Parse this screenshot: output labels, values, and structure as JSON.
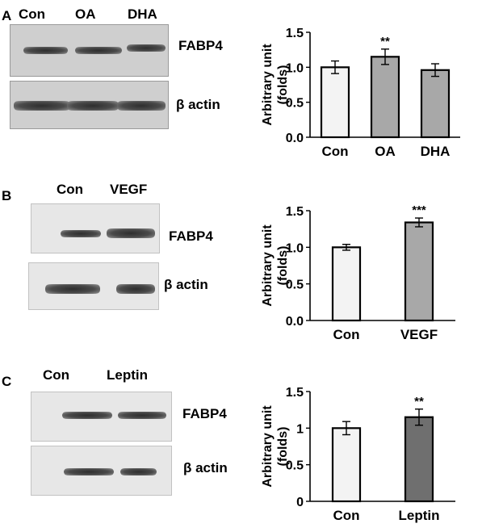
{
  "panels": [
    {
      "label": "A",
      "lanes": [
        "Con",
        "OA",
        "DHA"
      ],
      "blots": [
        {
          "target": "FABP4",
          "bands": [
            {
              "intensity": 0.9
            },
            {
              "intensity": 0.95
            },
            {
              "intensity": 0.8
            }
          ]
        },
        {
          "target": "β actin",
          "bands": [
            {
              "intensity": 1.0
            },
            {
              "intensity": 1.0
            },
            {
              "intensity": 1.0
            }
          ]
        }
      ]
    },
    {
      "label": "B",
      "lanes": [
        "Con",
        "VEGF"
      ],
      "blots": [
        {
          "target": "FABP4",
          "bands": [
            {
              "intensity": 0.75
            },
            {
              "intensity": 1.0
            }
          ]
        },
        {
          "target": "β actin",
          "bands": [
            {
              "intensity": 1.0
            },
            {
              "intensity": 1.0
            }
          ]
        }
      ]
    },
    {
      "label": "C",
      "lanes": [
        "Con",
        "Leptin"
      ],
      "blots": [
        {
          "target": "FABP4",
          "bands": [
            {
              "intensity": 0.95
            },
            {
              "intensity": 1.0
            }
          ]
        },
        {
          "target": "β actin",
          "bands": [
            {
              "intensity": 1.0
            },
            {
              "intensity": 0.9
            }
          ]
        }
      ]
    }
  ],
  "chart_data": [
    {
      "type": "bar",
      "categories": [
        "Con",
        "OA",
        "DHA"
      ],
      "values": [
        1.0,
        1.15,
        0.96
      ],
      "errors": [
        0.09,
        0.11,
        0.09
      ],
      "bar_colors": [
        "#f3f3f3",
        "#a8a8a8",
        "#a8a8a8"
      ],
      "significance": [
        "",
        "**",
        ""
      ],
      "ylabel_lines": [
        "Arbitrary unit",
        "(folds)"
      ],
      "ylim": [
        0,
        1.5
      ],
      "yticks": [
        "0.0",
        "0.5",
        "1.0",
        "1.5"
      ],
      "ytick_values": [
        0,
        0.5,
        1.0,
        1.5
      ],
      "grid": false
    },
    {
      "type": "bar",
      "categories": [
        "Con",
        "VEGF"
      ],
      "values": [
        1.0,
        1.34
      ],
      "errors": [
        0.04,
        0.06
      ],
      "bar_colors": [
        "#f3f3f3",
        "#a8a8a8"
      ],
      "significance": [
        "",
        "***"
      ],
      "ylabel_lines": [
        "Arbitrary unit",
        "(folds)"
      ],
      "ylim": [
        0,
        1.5
      ],
      "yticks": [
        "0.0",
        "0.5",
        "1.0",
        "1.5"
      ],
      "ytick_values": [
        0,
        0.5,
        1.0,
        1.5
      ],
      "grid": false
    },
    {
      "type": "bar",
      "categories": [
        "Con",
        "Leptin"
      ],
      "values": [
        1.0,
        1.15
      ],
      "errors": [
        0.09,
        0.11
      ],
      "bar_colors": [
        "#f3f3f3",
        "#6f6f6f"
      ],
      "significance": [
        "",
        "**"
      ],
      "ylabel_lines": [
        "Arbitrary unit",
        "(folds)"
      ],
      "ylim": [
        0,
        1.5
      ],
      "yticks": [
        "0",
        "0.5",
        "1",
        "1.5"
      ],
      "ytick_values": [
        0,
        0.5,
        1,
        1.5
      ],
      "grid": false
    }
  ]
}
